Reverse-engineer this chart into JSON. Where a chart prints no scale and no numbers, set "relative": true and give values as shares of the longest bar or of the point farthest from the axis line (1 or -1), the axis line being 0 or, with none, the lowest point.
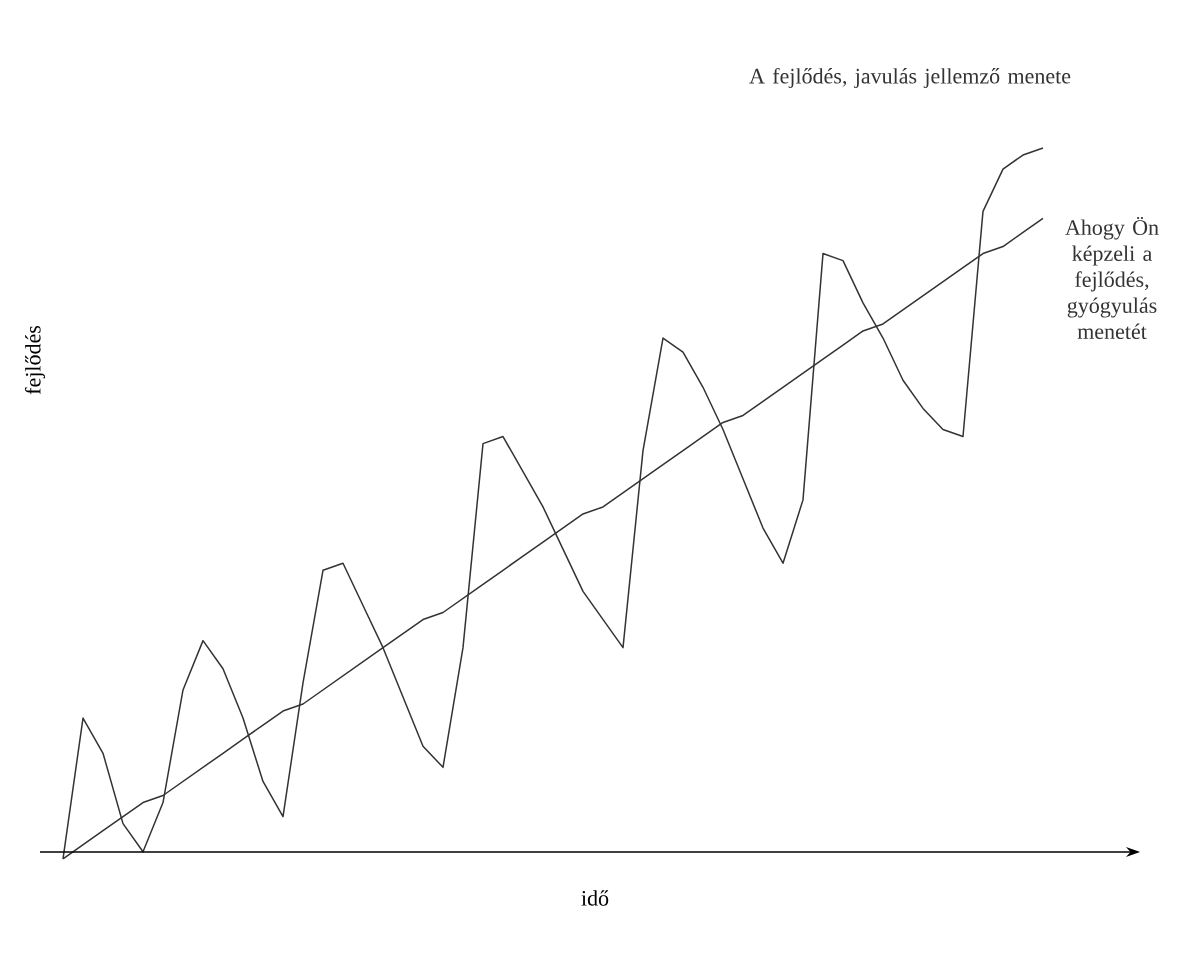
{
  "chart_data": {
    "type": "line",
    "relative": true,
    "xlabel": "idő",
    "ylabel": "fejlődés",
    "marker": "none",
    "categories": [
      null,
      null,
      null,
      null,
      null,
      null,
      null,
      null,
      null,
      null,
      null,
      null,
      null,
      null,
      null,
      null,
      null,
      null,
      null,
      null,
      null,
      null,
      null,
      null,
      null,
      null,
      null,
      null,
      null,
      null,
      null,
      null,
      null,
      null,
      null,
      null,
      null,
      null,
      null,
      null,
      null,
      null,
      null,
      null,
      null,
      null,
      null,
      null,
      null,
      null
    ],
    "series": [
      {
        "name": "A fejlődés, javulás jellemző menete",
        "color": "#333333",
        "values": [
          -0.01,
          0.19,
          0.14,
          0.04,
          0.0,
          0.07,
          0.23,
          0.3,
          0.26,
          0.19,
          0.1,
          0.05,
          0.24,
          0.4,
          0.41,
          0.35,
          0.29,
          0.22,
          0.15,
          0.12,
          0.29,
          0.58,
          0.59,
          0.54,
          0.49,
          0.43,
          0.37,
          0.33,
          0.29,
          0.57,
          0.73,
          0.71,
          0.66,
          0.6,
          0.53,
          0.46,
          0.41,
          0.5,
          0.85,
          0.84,
          0.78,
          0.73,
          0.67,
          0.63,
          0.6,
          0.59,
          0.91,
          0.97,
          0.99,
          1.0
        ]
      },
      {
        "name": "Ahogy Ön képzeli a fejlődés, gyógyulás menetét",
        "color": "#333333",
        "values": [
          -0.01,
          0.01,
          0.03,
          0.05,
          0.07,
          0.08,
          0.1,
          0.12,
          0.14,
          0.16,
          0.18,
          0.2,
          0.21,
          0.23,
          0.25,
          0.27,
          0.29,
          0.31,
          0.33,
          0.34,
          0.36,
          0.38,
          0.4,
          0.42,
          0.44,
          0.46,
          0.48,
          0.49,
          0.51,
          0.53,
          0.55,
          0.57,
          0.59,
          0.61,
          0.62,
          0.64,
          0.66,
          0.68,
          0.7,
          0.72,
          0.74,
          0.75,
          0.77,
          0.79,
          0.81,
          0.83,
          0.85,
          0.86,
          0.88,
          0.9
        ]
      }
    ]
  }
}
